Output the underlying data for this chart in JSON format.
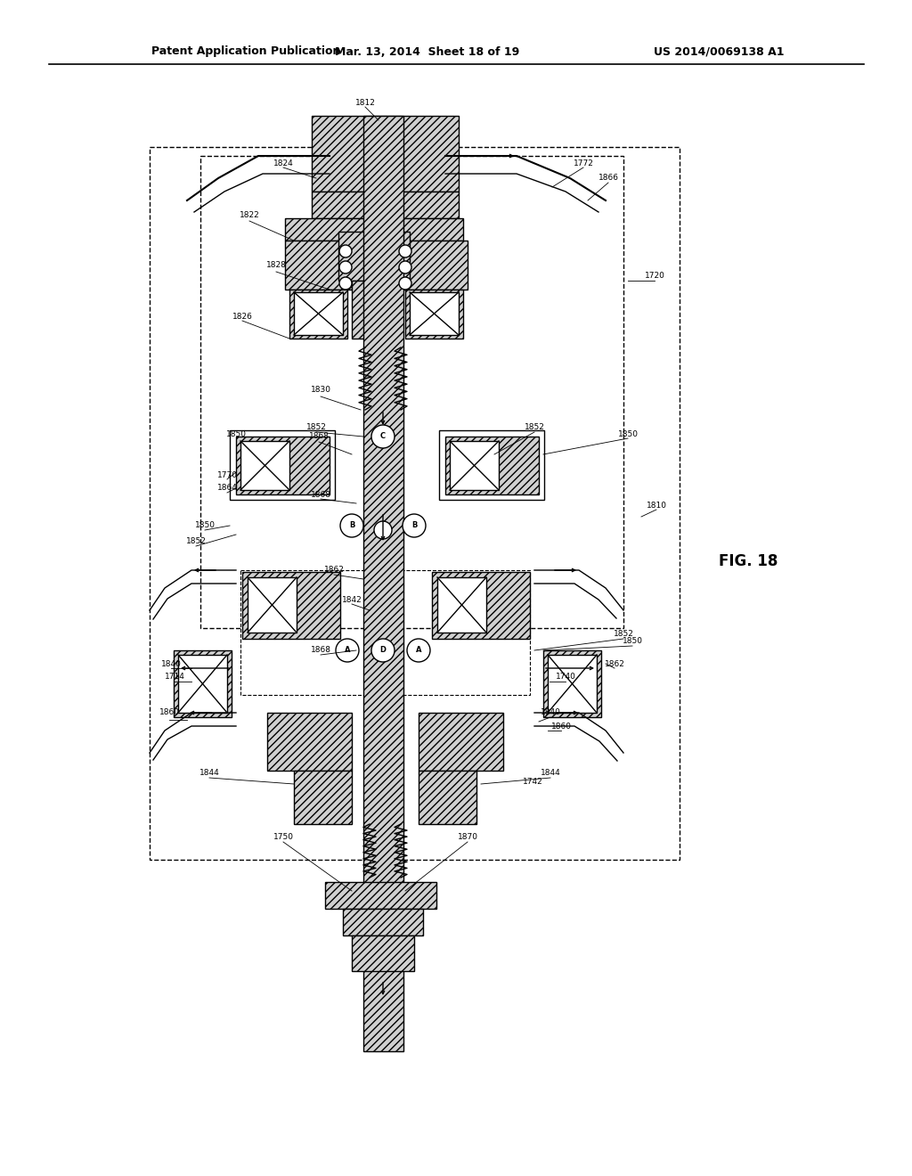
{
  "header_left": "Patent Application Publication",
  "header_mid": "Mar. 13, 2014  Sheet 18 of 19",
  "header_right": "US 2014/0069138 A1",
  "fig_label": "FIG. 18",
  "bg_color": "#ffffff"
}
